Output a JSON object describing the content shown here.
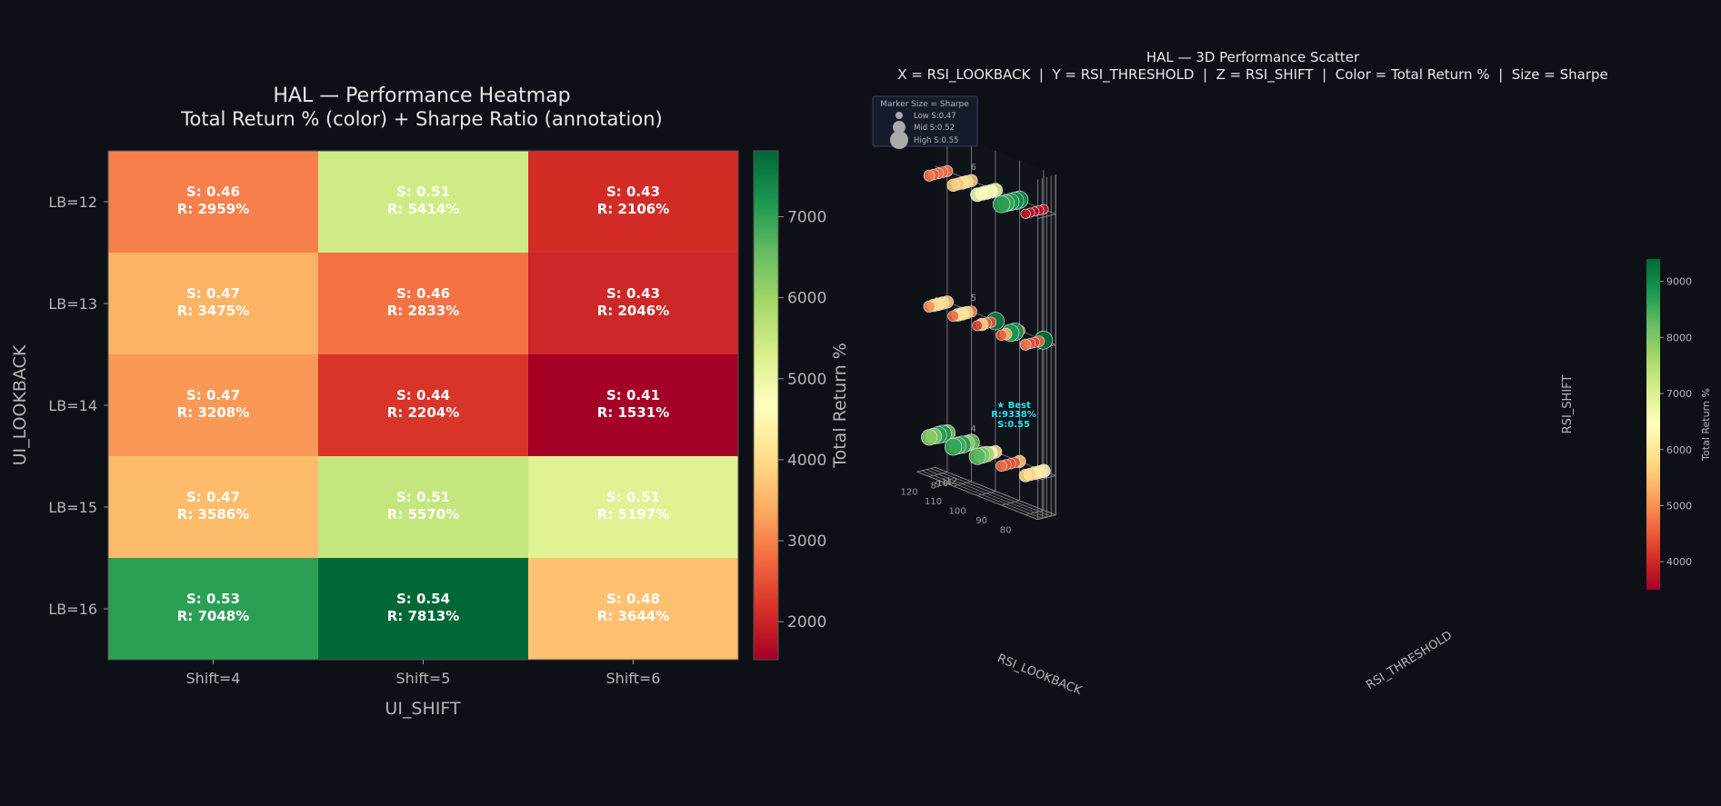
{
  "charts": [
    {
      "type": "heatmap",
      "title": "HAL — Performance Heatmap",
      "subtitle": "Total Return % (color) + Sharpe Ratio (annotation)",
      "xlabel": "UI_SHIFT",
      "ylabel": "UI_LOOKBACK",
      "x_categories": [
        "Shift=4",
        "Shift=5",
        "Shift=6"
      ],
      "y_categories": [
        "LB=12",
        "LB=13",
        "LB=14",
        "LB=15",
        "LB=16"
      ],
      "colorbar_label": "Total Return %",
      "colorbar_ticks": [
        2000,
        3000,
        4000,
        5000,
        6000,
        7000
      ],
      "color_range": [
        1531,
        7813
      ],
      "cells": [
        [
          {
            "sharpe": "S: 0.46",
            "ret": "R: 2959%",
            "value": 2959
          },
          {
            "sharpe": "S: 0.51",
            "ret": "R: 5414%",
            "value": 5414
          },
          {
            "sharpe": "S: 0.43",
            "ret": "R: 2106%",
            "value": 2106
          }
        ],
        [
          {
            "sharpe": "S: 0.47",
            "ret": "R: 3475%",
            "value": 3475
          },
          {
            "sharpe": "S: 0.46",
            "ret": "R: 2833%",
            "value": 2833
          },
          {
            "sharpe": "S: 0.43",
            "ret": "R: 2046%",
            "value": 2046
          }
        ],
        [
          {
            "sharpe": "S: 0.47",
            "ret": "R: 3208%",
            "value": 3208
          },
          {
            "sharpe": "S: 0.44",
            "ret": "R: 2204%",
            "value": 2204
          },
          {
            "sharpe": "S: 0.41",
            "ret": "R: 1531%",
            "value": 1531
          }
        ],
        [
          {
            "sharpe": "S: 0.47",
            "ret": "R: 3586%",
            "value": 3586
          },
          {
            "sharpe": "S: 0.51",
            "ret": "R: 5570%",
            "value": 5570
          },
          {
            "sharpe": "S: 0.51",
            "ret": "R: 5197%",
            "value": 5197
          }
        ],
        [
          {
            "sharpe": "S: 0.53",
            "ret": "R: 7048%",
            "value": 7048
          },
          {
            "sharpe": "S: 0.54",
            "ret": "R: 7813%",
            "value": 7813
          },
          {
            "sharpe": "S: 0.48",
            "ret": "R: 3644%",
            "value": 3644
          }
        ]
      ]
    },
    {
      "type": "scatter",
      "title": "HAL — 3D Performance Scatter",
      "subtitle": "X = RSI_LOOKBACK  |  Y = RSI_THRESHOLD  |  Z = RSI_SHIFT  |  Color = Total Return %  |  Size = Sharpe",
      "xlabel": "RSI_LOOKBACK",
      "ylabel": "RSI_THRESHOLD",
      "zlabel": "RSI_SHIFT",
      "x_ticks": [
        80,
        90,
        100,
        110,
        120
      ],
      "y_ticks": [
        8,
        9,
        10,
        11,
        12
      ],
      "z_ticks": [
        4,
        5,
        6
      ],
      "xlim": [
        75,
        125
      ],
      "ylim": [
        8,
        12
      ],
      "zlim": [
        3.7,
        6.3
      ],
      "colorbar_label": "Total Return %",
      "colorbar_ticks": [
        4000,
        5000,
        6000,
        7000,
        8000,
        9000
      ],
      "color_range": [
        3500,
        9400
      ],
      "legend": {
        "title": "Marker Size = Sharpe",
        "position": "top-left",
        "entries": [
          "Low S:0.47",
          "Mid S:0.52",
          "High S:0.55"
        ]
      },
      "best_annotation": {
        "line1": "★ Best",
        "line2": "R:9338%",
        "line3": "S:0.55",
        "x": 80,
        "y": 12,
        "z": 5,
        "ret": 9338
      },
      "points": [
        {
          "x": 80,
          "y": 8,
          "z": 4,
          "ret": 5900
        },
        {
          "x": 90,
          "y": 8,
          "z": 4,
          "ret": 4700
        },
        {
          "x": 100,
          "y": 8,
          "z": 4,
          "ret": 8300
        },
        {
          "x": 110,
          "y": 8,
          "z": 4,
          "ret": 8600
        },
        {
          "x": 120,
          "y": 8,
          "z": 4,
          "ret": 7900
        },
        {
          "x": 80,
          "y": 9,
          "z": 4,
          "ret": 5700
        },
        {
          "x": 90,
          "y": 9,
          "z": 4,
          "ret": 4500
        },
        {
          "x": 100,
          "y": 9,
          "z": 4,
          "ret": 8100
        },
        {
          "x": 110,
          "y": 9,
          "z": 4,
          "ret": 8500
        },
        {
          "x": 120,
          "y": 9,
          "z": 4,
          "ret": 8000
        },
        {
          "x": 80,
          "y": 10,
          "z": 4,
          "ret": 6100
        },
        {
          "x": 90,
          "y": 10,
          "z": 4,
          "ret": 4400
        },
        {
          "x": 100,
          "y": 10,
          "z": 4,
          "ret": 7800
        },
        {
          "x": 110,
          "y": 10,
          "z": 4,
          "ret": 8800
        },
        {
          "x": 120,
          "y": 10,
          "z": 4,
          "ret": 8700
        },
        {
          "x": 80,
          "y": 11,
          "z": 4,
          "ret": 6000
        },
        {
          "x": 90,
          "y": 11,
          "z": 4,
          "ret": 4300
        },
        {
          "x": 100,
          "y": 11,
          "z": 4,
          "ret": 6200
        },
        {
          "x": 110,
          "y": 11,
          "z": 4,
          "ret": 7900
        },
        {
          "x": 120,
          "y": 11,
          "z": 4,
          "ret": 8900
        },
        {
          "x": 80,
          "y": 12,
          "z": 4,
          "ret": 6300
        },
        {
          "x": 90,
          "y": 12,
          "z": 4,
          "ret": 5600
        },
        {
          "x": 100,
          "y": 12,
          "z": 4,
          "ret": 5800
        },
        {
          "x": 110,
          "y": 12,
          "z": 4,
          "ret": 8200
        },
        {
          "x": 120,
          "y": 12,
          "z": 4,
          "ret": 8000
        },
        {
          "x": 80,
          "y": 8,
          "z": 5,
          "ret": 4800
        },
        {
          "x": 90,
          "y": 8,
          "z": 5,
          "ret": 4500
        },
        {
          "x": 100,
          "y": 8,
          "z": 5,
          "ret": 4200
        },
        {
          "x": 110,
          "y": 8,
          "z": 5,
          "ret": 4600
        },
        {
          "x": 120,
          "y": 8,
          "z": 5,
          "ret": 5000
        },
        {
          "x": 80,
          "y": 9,
          "z": 5,
          "ret": 4400
        },
        {
          "x": 90,
          "y": 9,
          "z": 5,
          "ret": 5300
        },
        {
          "x": 100,
          "y": 9,
          "z": 5,
          "ret": 5700
        },
        {
          "x": 110,
          "y": 9,
          "z": 5,
          "ret": 5900
        },
        {
          "x": 120,
          "y": 9,
          "z": 5,
          "ret": 5800
        },
        {
          "x": 80,
          "y": 10,
          "z": 5,
          "ret": 4300
        },
        {
          "x": 90,
          "y": 10,
          "z": 5,
          "ret": 8800
        },
        {
          "x": 100,
          "y": 10,
          "z": 5,
          "ret": 4500
        },
        {
          "x": 110,
          "y": 10,
          "z": 5,
          "ret": 6000
        },
        {
          "x": 120,
          "y": 10,
          "z": 5,
          "ret": 5900
        },
        {
          "x": 80,
          "y": 11,
          "z": 5,
          "ret": 4600
        },
        {
          "x": 90,
          "y": 11,
          "z": 5,
          "ret": 9000
        },
        {
          "x": 100,
          "y": 11,
          "z": 5,
          "ret": 4400
        },
        {
          "x": 110,
          "y": 11,
          "z": 5,
          "ret": 5700
        },
        {
          "x": 120,
          "y": 11,
          "z": 5,
          "ret": 5800
        },
        {
          "x": 80,
          "y": 12,
          "z": 5,
          "ret": 9338
        },
        {
          "x": 90,
          "y": 12,
          "z": 5,
          "ret": 4700
        },
        {
          "x": 100,
          "y": 12,
          "z": 5,
          "ret": 9100
        },
        {
          "x": 110,
          "y": 12,
          "z": 5,
          "ret": 4900
        },
        {
          "x": 120,
          "y": 12,
          "z": 5,
          "ret": 5600
        },
        {
          "x": 80,
          "y": 8,
          "z": 6,
          "ret": 3800
        },
        {
          "x": 90,
          "y": 8,
          "z": 6,
          "ret": 8700
        },
        {
          "x": 100,
          "y": 8,
          "z": 6,
          "ret": 6600
        },
        {
          "x": 110,
          "y": 8,
          "z": 6,
          "ret": 5700
        },
        {
          "x": 120,
          "y": 8,
          "z": 6,
          "ret": 4800
        },
        {
          "x": 80,
          "y": 9,
          "z": 6,
          "ret": 3700
        },
        {
          "x": 90,
          "y": 9,
          "z": 6,
          "ret": 8600
        },
        {
          "x": 100,
          "y": 9,
          "z": 6,
          "ret": 6400
        },
        {
          "x": 110,
          "y": 9,
          "z": 6,
          "ret": 5500
        },
        {
          "x": 120,
          "y": 9,
          "z": 6,
          "ret": 4500
        },
        {
          "x": 80,
          "y": 10,
          "z": 6,
          "ret": 3600
        },
        {
          "x": 90,
          "y": 10,
          "z": 6,
          "ret": 8800
        },
        {
          "x": 100,
          "y": 10,
          "z": 6,
          "ret": 6700
        },
        {
          "x": 110,
          "y": 10,
          "z": 6,
          "ret": 5900
        },
        {
          "x": 120,
          "y": 10,
          "z": 6,
          "ret": 4700
        },
        {
          "x": 80,
          "y": 11,
          "z": 6,
          "ret": 3700
        },
        {
          "x": 90,
          "y": 11,
          "z": 6,
          "ret": 9000
        },
        {
          "x": 100,
          "y": 11,
          "z": 6,
          "ret": 6500
        },
        {
          "x": 110,
          "y": 11,
          "z": 6,
          "ret": 5800
        },
        {
          "x": 120,
          "y": 11,
          "z": 6,
          "ret": 4600
        },
        {
          "x": 80,
          "y": 12,
          "z": 6,
          "ret": 3800
        },
        {
          "x": 90,
          "y": 12,
          "z": 6,
          "ret": 8900
        },
        {
          "x": 100,
          "y": 12,
          "z": 6,
          "ret": 6800
        },
        {
          "x": 110,
          "y": 12,
          "z": 6,
          "ret": 5600
        },
        {
          "x": 120,
          "y": 12,
          "z": 6,
          "ret": 4800
        }
      ]
    }
  ],
  "colors": {
    "background": "#0d1017",
    "best_annotation": "#22e3f0",
    "cmap_stops": [
      "#a50026",
      "#d73027",
      "#f46d43",
      "#fdae61",
      "#fee08b",
      "#ffffbf",
      "#d9ef8b",
      "#a6d96a",
      "#66bd63",
      "#1a9850",
      "#006837"
    ]
  }
}
